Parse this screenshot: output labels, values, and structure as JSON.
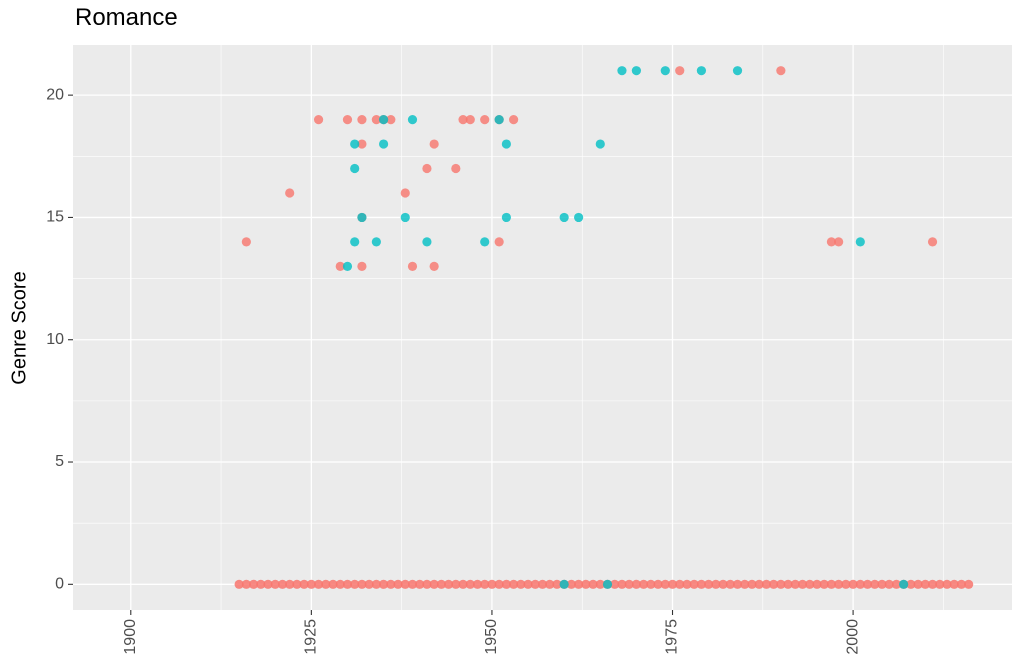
{
  "chart_data": {
    "type": "scatter",
    "title": "Romance",
    "xlabel": "",
    "ylabel": "Genre Score",
    "xlim": [
      1892,
      2022
    ],
    "ylim": [
      -1.05,
      22.05
    ],
    "x_ticks": [
      1900,
      1925,
      1950,
      1975,
      2000
    ],
    "y_ticks": [
      0,
      5,
      10,
      15,
      20
    ],
    "grid": true,
    "legend": "none",
    "colors": {
      "salmon": "#F8766D",
      "teal": "#00BFC4",
      "panel": "#EBEBEB",
      "grid": "#FFFFFF"
    },
    "series": [
      {
        "color": "#F8766D",
        "points": [
          [
            1916,
            14
          ],
          [
            1922,
            16
          ],
          [
            1926,
            19
          ],
          [
            1929,
            13
          ],
          [
            1930,
            19
          ],
          [
            1932,
            19
          ],
          [
            1932,
            18
          ],
          [
            1932,
            15
          ],
          [
            1932,
            13
          ],
          [
            1934,
            19
          ],
          [
            1935,
            19
          ],
          [
            1936,
            19
          ],
          [
            1938,
            16
          ],
          [
            1939,
            13
          ],
          [
            1941,
            17
          ],
          [
            1942,
            18
          ],
          [
            1942,
            13
          ],
          [
            1945,
            17
          ],
          [
            1946,
            19
          ],
          [
            1947,
            19
          ],
          [
            1949,
            19
          ],
          [
            1951,
            19
          ],
          [
            1951,
            14
          ],
          [
            1953,
            19
          ],
          [
            1976,
            21
          ],
          [
            1990,
            21
          ],
          [
            1997,
            14
          ],
          [
            1998,
            14
          ],
          [
            2011,
            14
          ]
        ],
        "zero_range": [
          1915,
          2016
        ]
      },
      {
        "color": "#00BFC4",
        "points": [
          [
            1930,
            13
          ],
          [
            1931,
            18
          ],
          [
            1931,
            17
          ],
          [
            1931,
            14
          ],
          [
            1932,
            15
          ],
          [
            1934,
            14
          ],
          [
            1935,
            19
          ],
          [
            1935,
            18
          ],
          [
            1938,
            15
          ],
          [
            1939,
            19
          ],
          [
            1941,
            14
          ],
          [
            1949,
            14
          ],
          [
            1951,
            19
          ],
          [
            1952,
            18
          ],
          [
            1952,
            15
          ],
          [
            1960,
            15
          ],
          [
            1962,
            15
          ],
          [
            1965,
            18
          ],
          [
            1968,
            21
          ],
          [
            1970,
            21
          ],
          [
            1974,
            21
          ],
          [
            1979,
            21
          ],
          [
            1984,
            21
          ],
          [
            2001,
            14
          ],
          [
            1960,
            0
          ],
          [
            1966,
            0
          ],
          [
            2007,
            0
          ]
        ]
      }
    ]
  }
}
